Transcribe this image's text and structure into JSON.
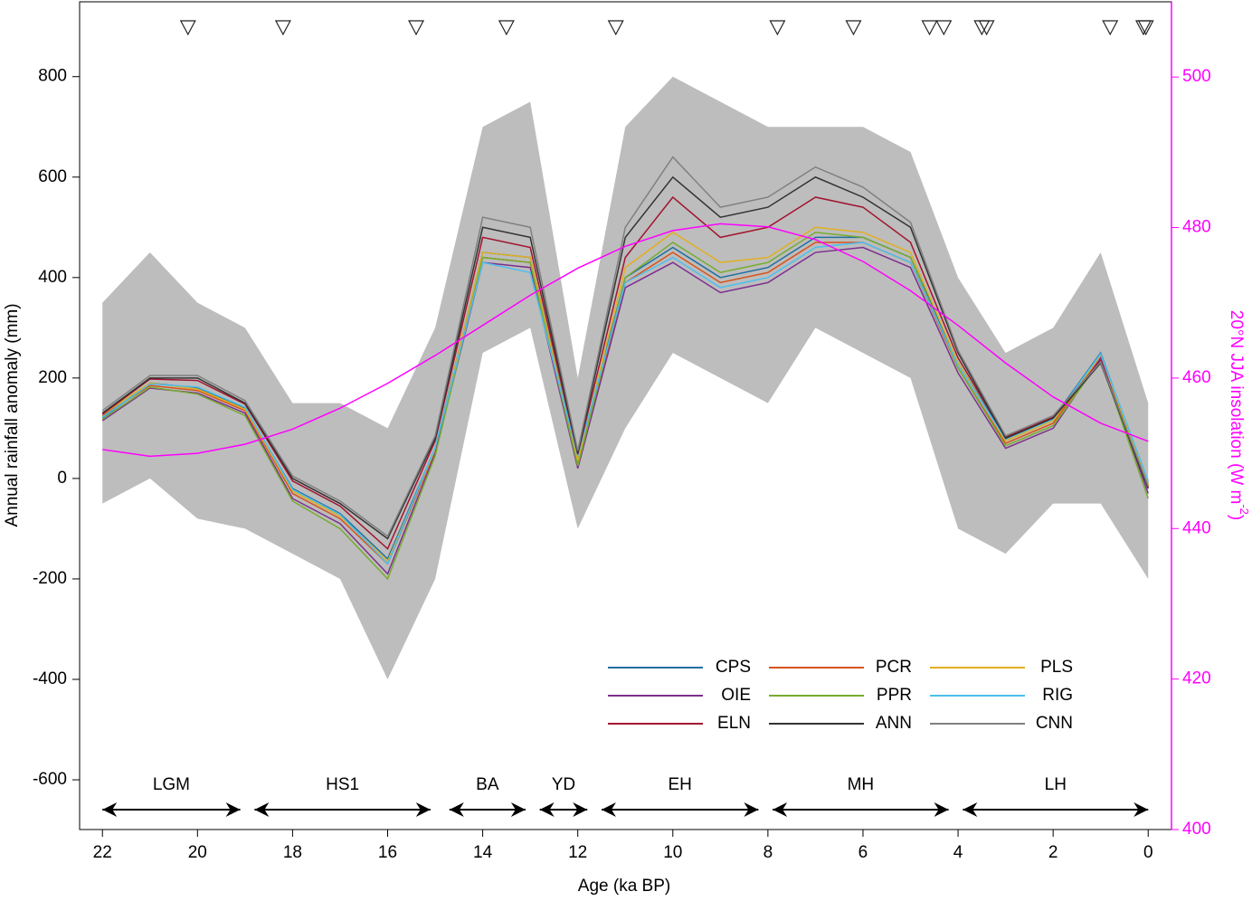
{
  "chart_data": {
    "type": "line",
    "xlabel": "Age (ka BP)",
    "ylabel": "Annual rainfall anomaly (mm)",
    "y2label": [
      "20°N JJA insolation (W m",
      "-2",
      ")"
    ],
    "xlim": [
      22.48,
      -0.49
    ],
    "ylim": [
      -699,
      949
    ],
    "y2lim": [
      400,
      510
    ],
    "xticks": [
      22,
      20,
      18,
      16,
      14,
      12,
      10,
      8,
      6,
      4,
      2,
      0
    ],
    "yticks": [
      -600,
      -400,
      -200,
      0,
      200,
      400,
      600,
      800
    ],
    "y2ticks": [
      400,
      420,
      440,
      460,
      480,
      500
    ],
    "legend": "lower right",
    "x": [
      22,
      21,
      20,
      19,
      18,
      17,
      16,
      15,
      14,
      13,
      12,
      11,
      10,
      9,
      8,
      7,
      6,
      5,
      4,
      3,
      2,
      1,
      0
    ],
    "band": {
      "color": "#bdbdbd",
      "lower": [
        -50,
        0,
        -80,
        -100,
        -150,
        -200,
        -400,
        -200,
        250,
        300,
        -100,
        100,
        250,
        200,
        150,
        300,
        250,
        200,
        -100,
        -150,
        -50,
        -50,
        -200
      ],
      "upper": [
        350,
        450,
        350,
        300,
        150,
        150,
        100,
        300,
        700,
        750,
        200,
        700,
        800,
        750,
        700,
        700,
        700,
        650,
        400,
        250,
        300,
        450,
        150
      ]
    },
    "series": [
      {
        "name": "CPS",
        "color": "#1f6fa0",
        "values": [
          120,
          190,
          180,
          140,
          -20,
          -70,
          -160,
          60,
          450,
          440,
          40,
          400,
          460,
          400,
          420,
          480,
          480,
          440,
          230,
          80,
          120,
          250,
          -10
        ]
      },
      {
        "name": "PCR",
        "color": "#d95319",
        "values": [
          125,
          185,
          175,
          135,
          -30,
          -80,
          -170,
          55,
          440,
          430,
          30,
          390,
          450,
          390,
          410,
          470,
          470,
          430,
          220,
          70,
          110,
          240,
          -15
        ]
      },
      {
        "name": "PLS",
        "color": "#e0b020",
        "values": [
          128,
          190,
          178,
          138,
          -25,
          -75,
          -165,
          58,
          450,
          440,
          35,
          420,
          490,
          430,
          440,
          500,
          490,
          450,
          230,
          75,
          115,
          245,
          -12
        ]
      },
      {
        "name": "OIE",
        "color": "#7e2f8e",
        "values": [
          115,
          180,
          170,
          130,
          -40,
          -90,
          -190,
          50,
          430,
          420,
          20,
          380,
          430,
          370,
          390,
          450,
          460,
          420,
          210,
          60,
          100,
          240,
          -30
        ]
      },
      {
        "name": "PPR",
        "color": "#77ac30",
        "values": [
          118,
          182,
          168,
          125,
          -45,
          -100,
          -200,
          45,
          440,
          430,
          25,
          400,
          470,
          410,
          430,
          490,
          480,
          440,
          220,
          65,
          105,
          235,
          -40
        ]
      },
      {
        "name": "RIG",
        "color": "#4dbeee",
        "values": [
          122,
          188,
          182,
          142,
          -22,
          -72,
          -170,
          62,
          430,
          410,
          45,
          390,
          440,
          380,
          400,
          460,
          470,
          430,
          225,
          78,
          118,
          248,
          -5
        ]
      },
      {
        "name": "ELN",
        "color": "#a2142f",
        "values": [
          128,
          198,
          195,
          148,
          -5,
          -55,
          -140,
          75,
          480,
          460,
          48,
          440,
          560,
          480,
          500,
          560,
          540,
          470,
          240,
          82,
          122,
          235,
          -18
        ]
      },
      {
        "name": "ANN",
        "color": "#333333",
        "values": [
          130,
          200,
          200,
          150,
          0,
          -50,
          -120,
          80,
          500,
          480,
          50,
          480,
          600,
          520,
          540,
          600,
          560,
          500,
          250,
          80,
          120,
          230,
          -20
        ]
      },
      {
        "name": "CNN",
        "color": "#808080",
        "values": [
          135,
          205,
          205,
          155,
          5,
          -45,
          -115,
          85,
          520,
          500,
          55,
          500,
          640,
          540,
          560,
          620,
          580,
          510,
          255,
          85,
          125,
          232,
          -15
        ]
      }
    ],
    "insolation": {
      "axis": "y2",
      "color": "#ff00ff",
      "values": [
        450.5,
        449.6,
        450,
        451.2,
        453.2,
        456,
        459.3,
        463,
        467,
        471,
        474.6,
        477.5,
        479.6,
        480.5,
        480.1,
        478.4,
        475.5,
        471.6,
        467,
        462,
        457.5,
        454,
        451.6
      ]
    },
    "dating_points": [
      20.2,
      18.2,
      15.4,
      13.5,
      11.2,
      7.8,
      6.2,
      4.6,
      4.3,
      3.5,
      3.4,
      0.8,
      0.1,
      0.05
    ],
    "periods": [
      {
        "label": "LGM",
        "start": 22,
        "end": 19.1
      },
      {
        "label": "HS1",
        "start": 18.8,
        "end": 15.1
      },
      {
        "label": "BA",
        "start": 14.7,
        "end": 13.1
      },
      {
        "label": "YD",
        "start": 12.8,
        "end": 11.8
      },
      {
        "label": "EH",
        "start": 11.5,
        "end": 8.2
      },
      {
        "label": "MH",
        "start": 7.9,
        "end": 4.2
      },
      {
        "label": "LH",
        "start": 3.9,
        "end": 0
      }
    ]
  }
}
